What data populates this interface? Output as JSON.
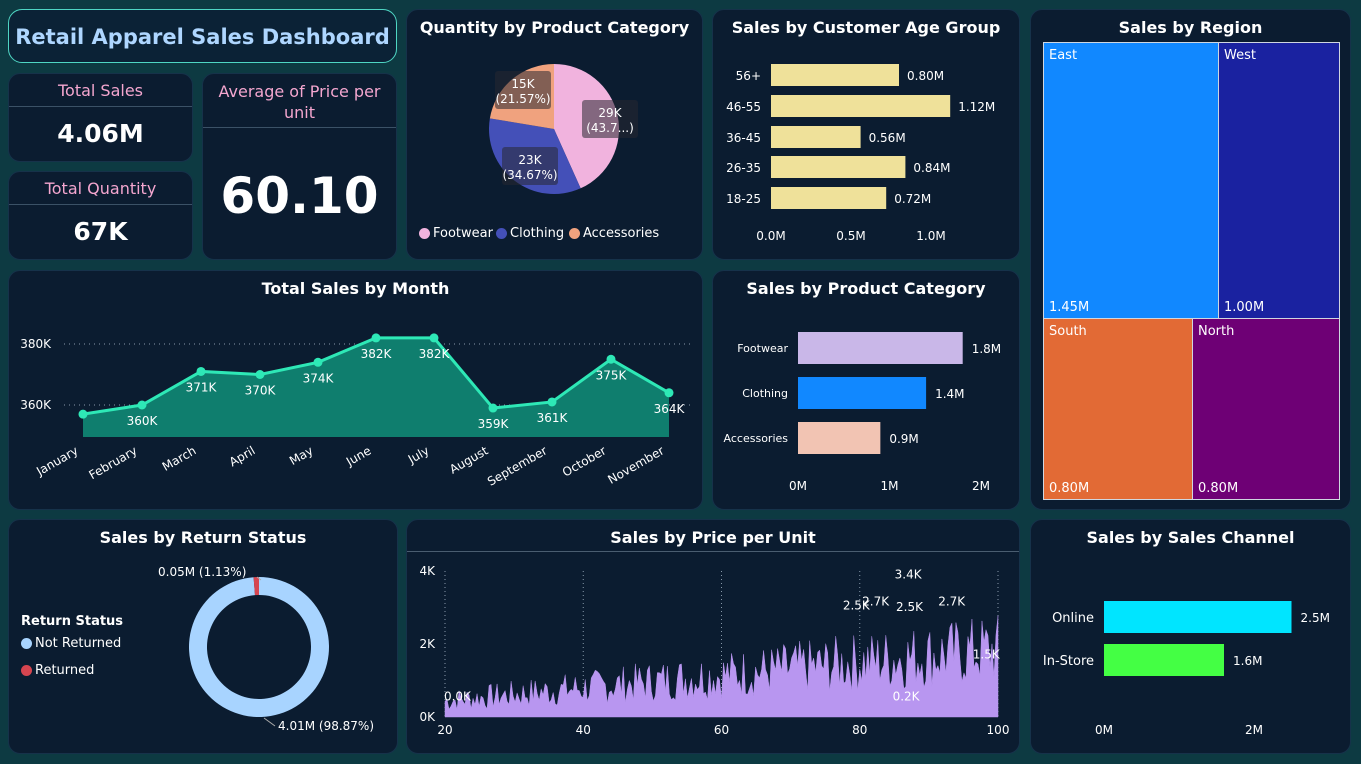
{
  "dashboard": {
    "title": "Retail Apparel Sales Dashboard"
  },
  "kpis": {
    "total_sales": {
      "label": "Total Sales",
      "value": "4.06M"
    },
    "total_quantity": {
      "label": "Total Quantity",
      "value": "67K"
    },
    "avg_price": {
      "label": "Average of Price per unit",
      "value": "60.10"
    }
  },
  "colors": {
    "background": "#0d3a42",
    "card": "#0b1c30",
    "kpi_label": "#f4a6cf",
    "accent_teal": "#2ee8b6"
  },
  "pie_category": {
    "title": "Quantity by Product Category",
    "chart_data": {
      "type": "pie",
      "slices": [
        {
          "name": "Footwear",
          "value": 29,
          "label_line1": "29K",
          "label_line2": "(43.7...)",
          "color": "#f1b3de"
        },
        {
          "name": "Clothing",
          "value": 23,
          "label_line1": "23K",
          "label_line2": "(34.67%)",
          "color": "#4450b8"
        },
        {
          "name": "Accessories",
          "value": 15,
          "label_line1": "15K",
          "label_line2": "(21.57%)",
          "color": "#f0a27e"
        }
      ],
      "percents": [
        43.76,
        34.67,
        21.57
      ]
    }
  },
  "age_group": {
    "title": "Sales by Customer Age Group",
    "chart_data": {
      "type": "bar",
      "categories": [
        "56+",
        "46-55",
        "36-45",
        "26-35",
        "18-25"
      ],
      "values": [
        0.8,
        1.12,
        0.56,
        0.84,
        0.72
      ],
      "labels": [
        "0.80M",
        "1.12M",
        "0.56M",
        "0.84M",
        "0.72M"
      ],
      "xticks": [
        "0.0M",
        "0.5M",
        "1.0M"
      ],
      "xlim": [
        0,
        1.2
      ],
      "color": "#efe19a"
    }
  },
  "region": {
    "title": "Sales by Region",
    "cells": [
      {
        "name": "East",
        "value": "1.45M",
        "color": "#1188ff"
      },
      {
        "name": "West",
        "value": "1.00M",
        "color": "#1a22a0"
      },
      {
        "name": "South",
        "value": "0.80M",
        "color": "#e26a35"
      },
      {
        "name": "North",
        "value": "0.80M",
        "color": "#6e0075"
      }
    ],
    "chart_data": {
      "type": "treemap",
      "values": [
        1.45,
        1.0,
        0.8,
        0.8
      ]
    }
  },
  "monthly": {
    "title": "Total Sales by Month",
    "chart_data": {
      "type": "area",
      "categories": [
        "January",
        "February",
        "March",
        "April",
        "May",
        "June",
        "July",
        "August",
        "September",
        "October",
        "November"
      ],
      "values": [
        357,
        360,
        371,
        370,
        374,
        382,
        382,
        359,
        361,
        375,
        364
      ],
      "labels": [
        "",
        "360K",
        "371K",
        "370K",
        "374K",
        "382K",
        "382K",
        "359K",
        "361K",
        "375K",
        "364K"
      ],
      "yticks": [
        "380K",
        "360K"
      ],
      "ylim": [
        350,
        386
      ]
    }
  },
  "product_sales": {
    "title": "Sales by Product Category",
    "chart_data": {
      "type": "bar",
      "categories": [
        "Footwear",
        "Clothing",
        "Accessories"
      ],
      "values": [
        1.8,
        1.4,
        0.9
      ],
      "labels": [
        "1.8M",
        "1.4M",
        "0.9M"
      ],
      "colors": [
        "#c9b7e8",
        "#1188ff",
        "#f2c4b3"
      ],
      "xticks": [
        "0M",
        "1M",
        "2M"
      ],
      "xlim": [
        0,
        2
      ]
    }
  },
  "return_status": {
    "title": "Sales by Return Status",
    "legend_title": "Return Status",
    "items": [
      {
        "name": "Not Returned",
        "value": 4.01,
        "label": "4.01M (98.87%)",
        "color": "#a8d4ff"
      },
      {
        "name": "Returned",
        "value": 0.05,
        "label": "0.05M (1.13%)",
        "color": "#d64550"
      }
    ]
  },
  "price_unit": {
    "title": "Sales by Price per Unit",
    "chart_data": {
      "type": "bar",
      "xticks": [
        "20",
        "40",
        "60",
        "80",
        "100"
      ],
      "yticks": [
        "4K",
        "2K",
        "0K"
      ],
      "xlim": [
        20,
        100
      ],
      "ylim": [
        0,
        4
      ],
      "annotations": [
        {
          "text": "0.0K",
          "x": 21.8,
          "y": 0.45
        },
        {
          "text": "2.5K",
          "x": 79.5,
          "y": 2.95
        },
        {
          "text": "2.7K",
          "x": 82.3,
          "y": 3.05
        },
        {
          "text": "3.4K",
          "x": 87.0,
          "y": 3.8
        },
        {
          "text": "2.5K",
          "x": 87.2,
          "y": 2.9
        },
        {
          "text": "2.7K",
          "x": 93.3,
          "y": 3.05
        },
        {
          "text": "1.5K",
          "x": 98.3,
          "y": 1.6
        },
        {
          "text": "0.2K",
          "x": 86.7,
          "y": 0.45
        }
      ],
      "color": "#b896f0"
    }
  },
  "sales_channel": {
    "title": "Sales by Sales Channel",
    "chart_data": {
      "type": "bar",
      "categories": [
        "Online",
        "In-Store"
      ],
      "values": [
        2.5,
        1.6
      ],
      "labels": [
        "2.5M",
        "1.6M"
      ],
      "colors": [
        "#00e5ff",
        "#44ff44"
      ],
      "xticks": [
        "0M",
        "2M"
      ],
      "xlim": [
        0,
        3
      ]
    }
  }
}
